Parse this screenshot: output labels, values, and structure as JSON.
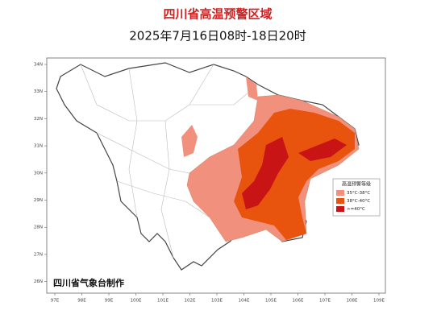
{
  "map": {
    "title": "四川省高温预警区域",
    "subtitle": "2025年7月16日08时-18日20时",
    "lon_ticks": [
      "97E",
      "98E",
      "99E",
      "100E",
      "101E",
      "102E",
      "103E",
      "104E",
      "105E",
      "106E",
      "107E",
      "108E",
      "109E"
    ],
    "lat_ticks": [
      "34N",
      "33N",
      "32N",
      "31N",
      "30N",
      "29N",
      "28N",
      "27N",
      "26N"
    ],
    "legend": {
      "title": "高温预警等级",
      "items": [
        {
          "label": "35°C-38°C",
          "color": "#f1907c"
        },
        {
          "label": "38°C-40°C",
          "color": "#e8540e"
        },
        {
          "label": ">=40°C",
          "color": "#c81414"
        }
      ]
    },
    "credit": "四川省气象台制作"
  }
}
